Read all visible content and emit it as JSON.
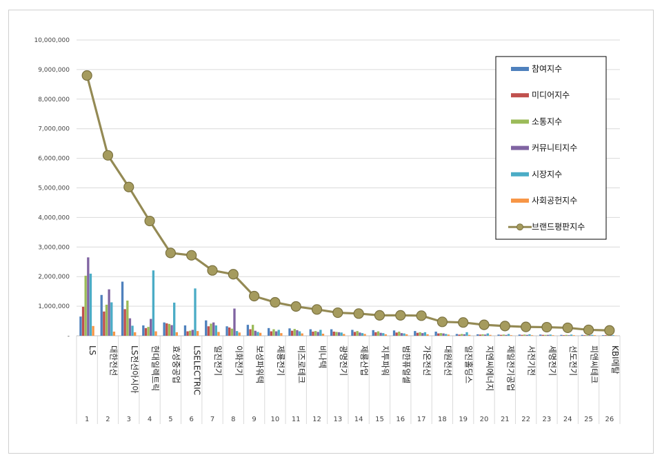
{
  "chart_data": {
    "type": "bar",
    "title": "",
    "xlabel": "",
    "ylabel": "",
    "ylim": [
      0,
      10000000
    ],
    "y_ticks": [
      "-",
      "1,000,000",
      "2,000,000",
      "3,000,000",
      "4,000,000",
      "5,000,000",
      "6,000,000",
      "7,000,000",
      "8,000,000",
      "9,000,000",
      "10,000,000"
    ],
    "grid": true,
    "legend_position": "top-right",
    "categories": [
      "LS",
      "대한전선",
      "LS전선아시아",
      "현대일렉트릭",
      "효성중공업",
      "LSELECTRIC",
      "일진전기",
      "이화전기",
      "보성파워텍",
      "제룡전기",
      "비즈로테크",
      "비나텍",
      "광명전기",
      "제룡산업",
      "지투파워",
      "범한퓨얼셀",
      "가온전선",
      "대원전선",
      "일진홀딩스",
      "지엔씨에너지",
      "제일전기공업",
      "서전기전",
      "세명전기",
      "선도전기",
      "피앤씨테크",
      "KBI메탈"
    ],
    "ranks": [
      "1",
      "2",
      "3",
      "4",
      "5",
      "6",
      "7",
      "8",
      "9",
      "10",
      "11",
      "12",
      "13",
      "14",
      "15",
      "16",
      "17",
      "18",
      "19",
      "20",
      "21",
      "22",
      "23",
      "24",
      "25",
      "26"
    ],
    "series": [
      {
        "name": "참여지수",
        "color": "#4f81bd",
        "values": [
          650000,
          1380000,
          1830000,
          350000,
          450000,
          350000,
          520000,
          320000,
          370000,
          260000,
          250000,
          220000,
          220000,
          200000,
          190000,
          180000,
          160000,
          140000,
          60000,
          50000,
          40000,
          40000,
          40000,
          30000,
          30000,
          20000
        ]
      },
      {
        "name": "미디어지수",
        "color": "#c0504d",
        "values": [
          980000,
          820000,
          900000,
          260000,
          420000,
          150000,
          320000,
          280000,
          220000,
          150000,
          170000,
          140000,
          140000,
          130000,
          120000,
          110000,
          100000,
          80000,
          40000,
          40000,
          30000,
          30000,
          30000,
          20000,
          20000,
          20000
        ]
      },
      {
        "name": "소통지수",
        "color": "#9bbb59",
        "values": [
          2030000,
          1050000,
          1190000,
          300000,
          400000,
          170000,
          410000,
          240000,
          370000,
          220000,
          230000,
          160000,
          130000,
          160000,
          150000,
          140000,
          120000,
          90000,
          60000,
          50000,
          40000,
          40000,
          30000,
          30000,
          20000,
          20000
        ]
      },
      {
        "name": "커뮤니티지수",
        "color": "#8064a2",
        "values": [
          2650000,
          1570000,
          590000,
          570000,
          360000,
          200000,
          450000,
          920000,
          170000,
          150000,
          190000,
          130000,
          120000,
          110000,
          100000,
          90000,
          90000,
          80000,
          50000,
          40000,
          30000,
          30000,
          30000,
          20000,
          20000,
          20000
        ]
      },
      {
        "name": "시장지수",
        "color": "#4bacc6",
        "values": [
          2100000,
          1130000,
          340000,
          2210000,
          1120000,
          1600000,
          350000,
          160000,
          130000,
          200000,
          150000,
          200000,
          110000,
          90000,
          90000,
          80000,
          120000,
          60000,
          120000,
          80000,
          60000,
          50000,
          40000,
          40000,
          30000,
          20000
        ]
      },
      {
        "name": "사회공헌지수",
        "color": "#f79646",
        "values": [
          330000,
          140000,
          120000,
          150000,
          120000,
          160000,
          130000,
          110000,
          100000,
          90000,
          80000,
          70000,
          60000,
          60000,
          50000,
          50000,
          50000,
          40000,
          30000,
          30000,
          20000,
          20000,
          20000,
          20000,
          20000,
          10000
        ]
      }
    ],
    "line": {
      "name": "브랜드평판지수",
      "color": "#948a54",
      "values": [
        8800000,
        6100000,
        5030000,
        3880000,
        2800000,
        2720000,
        2210000,
        2080000,
        1340000,
        1130000,
        990000,
        890000,
        780000,
        750000,
        690000,
        690000,
        680000,
        470000,
        450000,
        370000,
        330000,
        300000,
        290000,
        270000,
        200000,
        180000
      ]
    }
  }
}
